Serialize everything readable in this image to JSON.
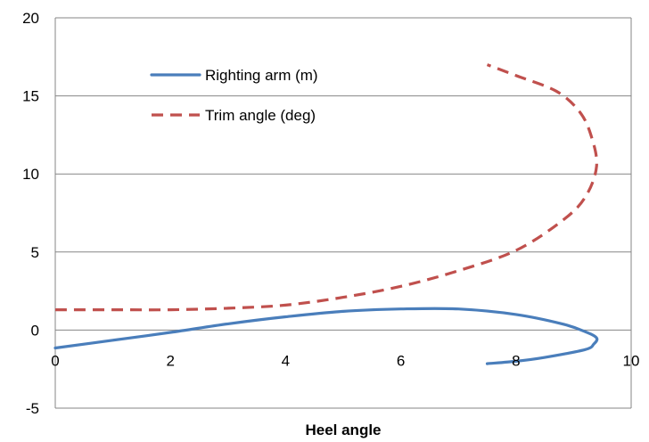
{
  "chart_data": {
    "type": "scatter",
    "title": "",
    "xlabel": "Heel angle",
    "ylabel": "",
    "xlim": [
      0,
      10
    ],
    "ylim": [
      -5,
      20
    ],
    "x_ticks": [
      "0",
      "2",
      "4",
      "6",
      "8",
      "10"
    ],
    "y_ticks": [
      "-5",
      "0",
      "5",
      "10",
      "15",
      "20"
    ],
    "grid": "horizontal",
    "legend_position": "top-left",
    "series": [
      {
        "name": "Righting arm (m)",
        "color": "#4A7EBB",
        "style": "solid",
        "points": [
          [
            0,
            -1.15
          ],
          [
            1,
            -0.65
          ],
          [
            2,
            -0.15
          ],
          [
            3,
            0.4
          ],
          [
            4,
            0.85
          ],
          [
            5,
            1.2
          ],
          [
            6,
            1.35
          ],
          [
            7,
            1.35
          ],
          [
            8,
            1.0
          ],
          [
            8.8,
            0.4
          ],
          [
            9.2,
            -0.1
          ],
          [
            9.4,
            -0.5
          ],
          [
            9.35,
            -0.9
          ],
          [
            9.2,
            -1.25
          ],
          [
            8.5,
            -1.75
          ],
          [
            8.0,
            -2.0
          ],
          [
            7.5,
            -2.15
          ]
        ]
      },
      {
        "name": "Trim angle (deg)",
        "color": "#C0504D",
        "style": "dashed",
        "points": [
          [
            0,
            1.3
          ],
          [
            1,
            1.3
          ],
          [
            2,
            1.3
          ],
          [
            3,
            1.4
          ],
          [
            4,
            1.6
          ],
          [
            5,
            2.1
          ],
          [
            6,
            2.8
          ],
          [
            7,
            3.8
          ],
          [
            8,
            5.1
          ],
          [
            8.8,
            7.0
          ],
          [
            9.2,
            8.5
          ],
          [
            9.4,
            10.5
          ],
          [
            9.3,
            12.5
          ],
          [
            9.1,
            14.0
          ],
          [
            8.7,
            15.3
          ],
          [
            8.0,
            16.3
          ],
          [
            7.5,
            17.0
          ]
        ]
      }
    ]
  }
}
